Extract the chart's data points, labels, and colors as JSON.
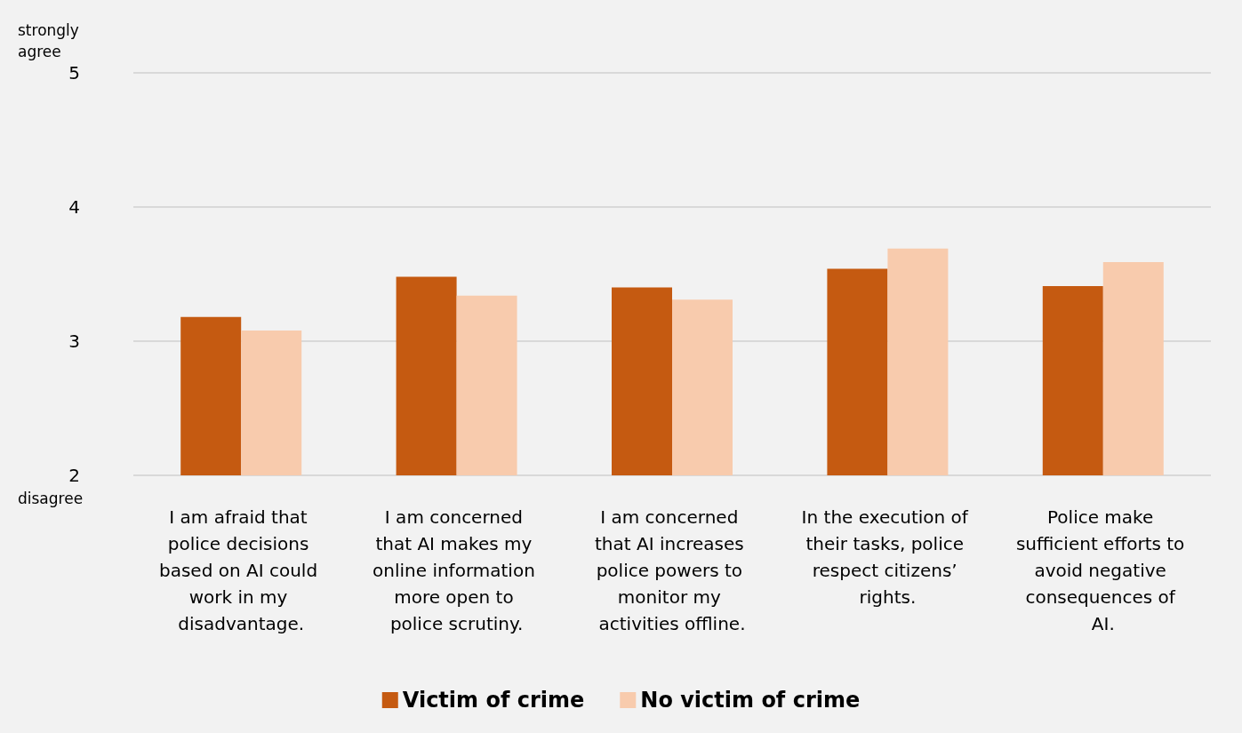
{
  "chart_data": {
    "type": "bar",
    "categories": [
      "I am afraid that police decisions based on AI could work in my disadvantage.",
      "I am concerned that AI makes my online information more open to police scrutiny.",
      "I am concerned that AI increases police powers to monitor my activities offline.",
      "In the execution of their tasks, police respect citizens’ rights.",
      "Police make sufficient efforts to avoid negative consequences of AI."
    ],
    "series": [
      {
        "name": "Victim of crime",
        "color": "#c55a11",
        "values": [
          3.18,
          3.48,
          3.4,
          3.54,
          3.41
        ]
      },
      {
        "name": "No victim of crime",
        "color": "#f8cbad",
        "values": [
          3.08,
          3.34,
          3.31,
          3.69,
          3.59
        ]
      }
    ],
    "ylim": [
      2,
      5
    ],
    "yticks": [
      2,
      3,
      4,
      5
    ],
    "grid": "y",
    "legend": "bottom",
    "annotations": [
      "strongly agree",
      "disagree"
    ]
  }
}
